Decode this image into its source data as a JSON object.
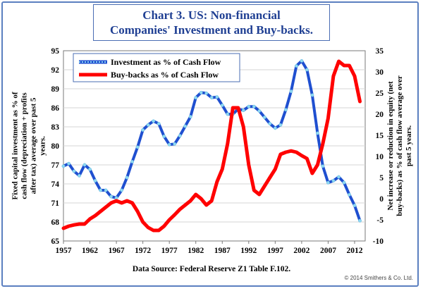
{
  "title": {
    "line1": "Chart 3. US: Non-financial",
    "line2": "Companies' Investment and Buy-backs."
  },
  "source": "Data Source: Federal Reserve Z1 Table F.102.",
  "copyright": "© 2014 Smithers & Co. Ltd.",
  "chart_data": {
    "type": "line",
    "title": "Chart 3. US: Non-financial Companies' Investment and Buy-backs.",
    "x_ticks": [
      "1957",
      "1962",
      "1967",
      "1972",
      "1977",
      "1982",
      "1987",
      "1992",
      "1997",
      "2002",
      "2007",
      "2012"
    ],
    "xlim": [
      1957,
      2014
    ],
    "y_left": {
      "label": "Fixed capital investment as % of cash flow (depreciation + profits after tax) average over past 5 years.",
      "ticks": [
        "65",
        "68",
        "71",
        "74",
        "77",
        "80",
        "83",
        "86",
        "89",
        "92",
        "95"
      ],
      "lim": [
        65,
        95
      ]
    },
    "y_right": {
      "label": "Net increase or reduction in equity (net buy-backs) as % of cash flow average over past 5 years.",
      "ticks": [
        "-10",
        "-5",
        "0",
        "5",
        "10",
        "15",
        "20",
        "25",
        "30",
        "35"
      ],
      "lim": [
        -10,
        35
      ]
    },
    "legend_position": "top-left",
    "series": [
      {
        "name": "Investment as % of Cash Flow",
        "axis": "left",
        "color": "#1f4fd0",
        "marker_color": "#8fd8f2",
        "x": [
          1957,
          1958,
          1959,
          1960,
          1961,
          1962,
          1963,
          1964,
          1965,
          1966,
          1967,
          1968,
          1969,
          1970,
          1971,
          1972,
          1973,
          1974,
          1975,
          1976,
          1977,
          1978,
          1979,
          1980,
          1981,
          1982,
          1983,
          1984,
          1985,
          1986,
          1987,
          1988,
          1989,
          1990,
          1991,
          1992,
          1993,
          1994,
          1995,
          1996,
          1997,
          1998,
          1999,
          2000,
          2001,
          2002,
          2003,
          2004,
          2005,
          2006,
          2007,
          2008,
          2009,
          2010,
          2011,
          2012,
          2013
        ],
        "y": [
          76.8,
          77.2,
          76.0,
          75.3,
          77.0,
          76.3,
          74.5,
          73.0,
          73.0,
          72.0,
          71.8,
          73.0,
          75.0,
          77.5,
          79.8,
          82.5,
          83.3,
          83.9,
          83.5,
          81.5,
          80.2,
          80.3,
          81.6,
          83.1,
          84.6,
          87.6,
          88.4,
          88.3,
          87.6,
          87.7,
          86.4,
          85.0,
          85.0,
          85.8,
          85.6,
          86.2,
          86.2,
          85.5,
          84.5,
          83.5,
          82.8,
          83.3,
          85.7,
          88.6,
          92.6,
          93.4,
          92.0,
          88.0,
          82.0,
          76.8,
          74.2,
          74.5,
          75.1,
          74.2,
          72.3,
          70.6,
          68.2
        ]
      },
      {
        "name": "Buy-backs as % of Cash Flow",
        "axis": "right",
        "color": "#ff0000",
        "x": [
          1957,
          1958,
          1959,
          1960,
          1961,
          1962,
          1963,
          1964,
          1965,
          1966,
          1967,
          1968,
          1969,
          1970,
          1971,
          1972,
          1973,
          1974,
          1975,
          1976,
          1977,
          1978,
          1979,
          1980,
          1981,
          1982,
          1983,
          1984,
          1985,
          1986,
          1987,
          1988,
          1989,
          1990,
          1991,
          1992,
          1993,
          1994,
          1995,
          1996,
          1997,
          1998,
          1999,
          2000,
          2001,
          2002,
          2003,
          2004,
          2005,
          2006,
          2007,
          2008,
          2009,
          2010,
          2011,
          2012,
          2013
        ],
        "y": [
          -7.0,
          -6.5,
          -6.2,
          -6.0,
          -6.0,
          -4.8,
          -4.0,
          -3.0,
          -2.0,
          -1.0,
          -0.5,
          -1.0,
          -0.5,
          -1.0,
          -3.0,
          -5.5,
          -6.8,
          -7.5,
          -7.5,
          -6.5,
          -5.0,
          -3.8,
          -2.5,
          -1.5,
          -0.5,
          1.0,
          0.0,
          -1.5,
          -0.5,
          4.0,
          7.0,
          13.0,
          21.5,
          21.5,
          17.0,
          8.0,
          2.0,
          1.0,
          3.0,
          5.0,
          7.0,
          10.5,
          11.0,
          11.3,
          11.0,
          10.2,
          9.5,
          6.0,
          8.0,
          13.0,
          19.0,
          29.0,
          32.5,
          31.5,
          31.5,
          29.0,
          23.0
        ]
      }
    ]
  }
}
